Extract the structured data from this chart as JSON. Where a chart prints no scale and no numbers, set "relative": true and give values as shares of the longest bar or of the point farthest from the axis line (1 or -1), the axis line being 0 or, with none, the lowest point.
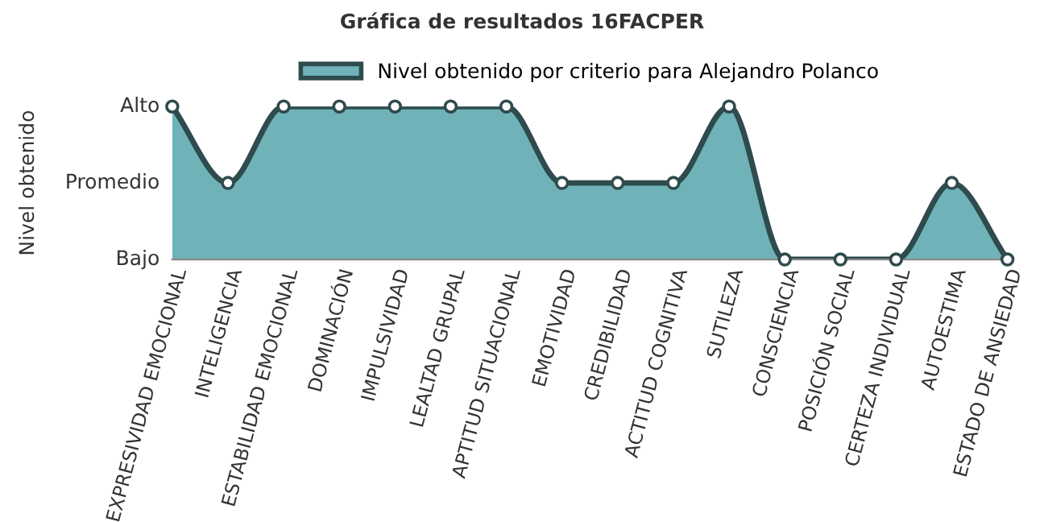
{
  "chart_data": {
    "type": "area",
    "title": "Gráfica de resultados 16FACPER",
    "ylabel": "Nivel obtenido",
    "categories": [
      "EXPRESIVIDAD EMOCIONAL",
      "INTELIGENCIA",
      "ESTABILIDAD EMOCIONAL",
      "DOMINACIÓN",
      "IMPULSIVIDAD",
      "LEALTAD GRUPAL",
      "APTITUD SITUACIONAL",
      "EMOTIVIDAD",
      "CREDIBILIDAD",
      "ACTITUD COGNITIVA",
      "SUTILEZA",
      "CONSCIENCIA",
      "POSICIÓN SOCIAL",
      "CERTEZA INDIVIDUAL",
      "AUTOESTIMA",
      "ESTADO DE ANSIEDAD"
    ],
    "series": [
      {
        "name": "Nivel obtenido por criterio para Alejandro Polanco",
        "color": "#6fb3b8",
        "values": [
          1,
          0.5,
          1,
          1,
          1,
          1,
          1,
          0.5,
          0.5,
          0.5,
          1,
          0,
          0,
          0,
          0.5,
          0
        ]
      }
    ],
    "relative": true,
    "annotations": [
      "Alto",
      "Promedio",
      "Bajo"
    ],
    "legend": "top",
    "marker": "circle"
  }
}
